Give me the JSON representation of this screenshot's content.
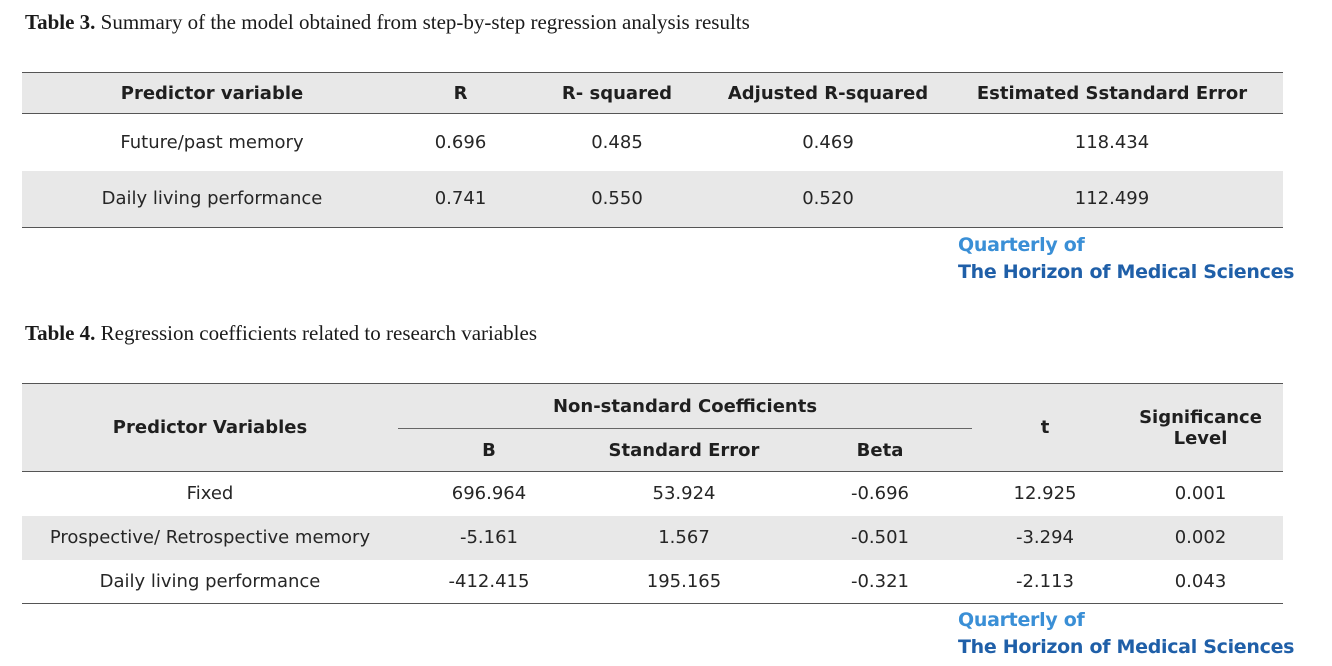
{
  "table3": {
    "caption_bold": "Table 3.",
    "caption_text": " Summary of the model obtained from step-by-step regression analysis results",
    "headers": [
      "Predictor variable",
      "R",
      "R- squared",
      "Adjusted R-squared",
      "Estimated Sstandard Error"
    ],
    "rows": [
      [
        "Future/past memory",
        "0.696",
        "0.485",
        "0.469",
        "118.434"
      ],
      [
        "Daily living performance",
        "0.741",
        "0.550",
        "0.520",
        "112.499"
      ]
    ]
  },
  "table4": {
    "caption_bold": "Table 4.",
    "caption_text": " Regression coefficients related to research variables",
    "header_predictor": "Predictor Variables",
    "header_group": "Non-standard Coefficients",
    "header_sub": [
      "B",
      "Standard Error",
      "Beta"
    ],
    "header_t": "t",
    "header_sig": "Significance Level",
    "rows": [
      [
        "Fixed",
        "696.964",
        "53.924",
        "-0.696",
        "12.925",
        "0.001"
      ],
      [
        "Prospective/ Retrospective memory",
        "-5.161",
        "1.567",
        "-0.501",
        "-3.294",
        "0.002"
      ],
      [
        "Daily living performance",
        "-412.415",
        "195.165",
        "-0.321",
        "-2.113",
        "0.043"
      ]
    ]
  },
  "watermark": {
    "line1": "Quarterly of",
    "line2": "The Horizon of Medical Sciences"
  }
}
